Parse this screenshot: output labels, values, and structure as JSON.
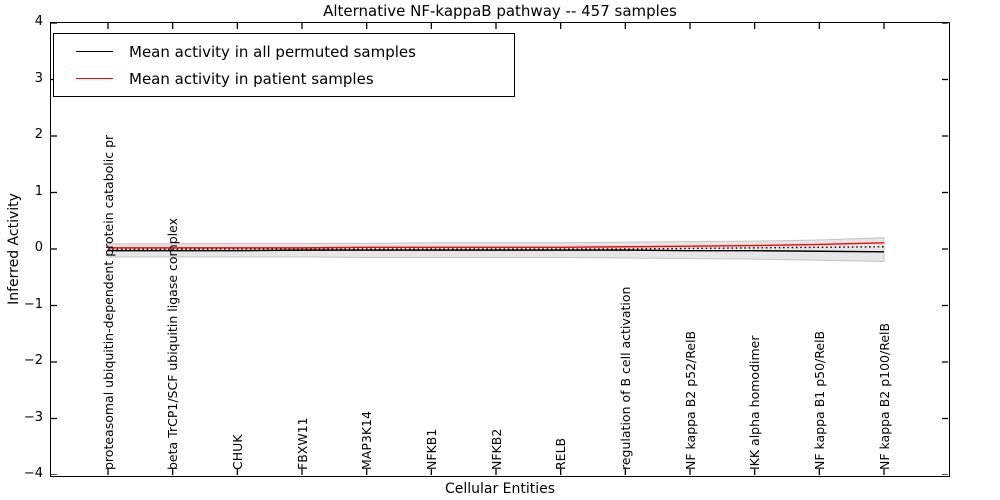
{
  "title": "Alternative NF-kappaB pathway -- 457 samples",
  "axes": {
    "x_title": "Cellular Entities",
    "y_title": "Inferred Activity"
  },
  "legend": {
    "position": "upper left",
    "items": [
      {
        "label": "Mean activity in all permuted samples",
        "color": "#000000"
      },
      {
        "label": "Mean activity in patient samples",
        "color": "#ff0000"
      }
    ]
  },
  "chart_data": {
    "type": "line",
    "title": "Alternative NF-kappaB pathway -- 457 samples",
    "xlabel": "Cellular Entities",
    "ylabel": "Inferred Activity",
    "ylim": [
      -4,
      4
    ],
    "yticks": [
      4,
      3,
      2,
      1,
      0,
      -1,
      -2,
      -3,
      -4
    ],
    "ytick_labels": [
      "4",
      "3",
      "2",
      "1",
      "0",
      "−1",
      "−2",
      "−3",
      "−4"
    ],
    "grid": false,
    "legend_position": "upper left",
    "categories": [
      "proteasomal ubiquitin-dependent protein catabolic pr",
      "beta TrCP1/SCF ubiquitin ligase complex",
      "CHUK",
      "FBXW11",
      "MAP3K14",
      "NFKB1",
      "NFKB2",
      "RELB",
      "regulation of B cell activation",
      "NF kappa B2 p52/RelB",
      "IKK alpha homodimer",
      "NF kappa B1 p50/RelB",
      "NF kappa B2 p100/RelB"
    ],
    "series": [
      {
        "name": "Mean activity in all permuted samples",
        "color": "#000000",
        "style": "solid",
        "values": [
          -0.03,
          -0.03,
          -0.03,
          -0.02,
          -0.02,
          -0.02,
          -0.02,
          -0.02,
          -0.02,
          -0.03,
          -0.03,
          -0.04,
          -0.05
        ]
      },
      {
        "name": "Mean activity in patient samples",
        "color": "#ff0000",
        "style": "solid",
        "values": [
          0.02,
          0.02,
          0.02,
          0.02,
          0.03,
          0.03,
          0.03,
          0.03,
          0.04,
          0.05,
          0.06,
          0.08,
          0.11
        ]
      },
      {
        "name": "unlabeled dotted line",
        "color": "#000000",
        "style": "dotted",
        "values": [
          -0.005,
          -0.005,
          0,
          0,
          0,
          0,
          0,
          0,
          0,
          0.01,
          0.02,
          0.03,
          0.04
        ]
      }
    ],
    "band": {
      "name": "permuted samples spread",
      "fill": "#e6e6e6",
      "edge": "#c4c4c4",
      "upper": [
        0.09,
        0.09,
        0.1,
        0.1,
        0.1,
        0.11,
        0.11,
        0.11,
        0.12,
        0.13,
        0.14,
        0.16,
        0.2
      ],
      "lower": [
        -0.14,
        -0.14,
        -0.14,
        -0.14,
        -0.15,
        -0.15,
        -0.15,
        -0.15,
        -0.16,
        -0.17,
        -0.18,
        -0.2,
        -0.22
      ]
    }
  }
}
